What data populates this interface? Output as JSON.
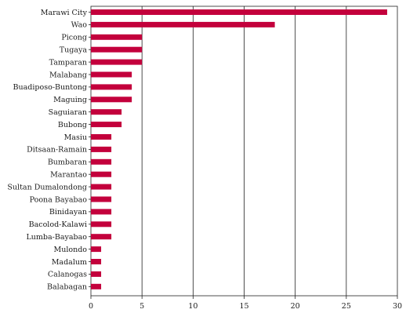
{
  "chart_data": {
    "type": "bar",
    "orientation": "horizontal",
    "categories": [
      "Marawi City",
      "Wao",
      "Picong",
      "Tugaya",
      "Tamparan",
      "Malabang",
      "Buadiposo-Buntong",
      "Maguing",
      "Saguiaran",
      "Bubong",
      "Masiu",
      "Ditsaan-Ramain",
      "Bumbaran",
      "Marantao",
      "Sultan Dumalondong",
      "Poona Bayabao",
      "Binidayan",
      "Bacolod-Kalawi",
      "Lumba-Bayabao",
      "Mulondo",
      "Madalum",
      "Calanogas",
      "Balabagan"
    ],
    "values": [
      29,
      18,
      5,
      5,
      5,
      4,
      4,
      4,
      3,
      3,
      2,
      2,
      2,
      2,
      2,
      2,
      2,
      2,
      2,
      1,
      1,
      1,
      1
    ],
    "xlim": [
      0,
      30
    ],
    "xticks": [
      "0",
      "5",
      "10",
      "15",
      "20",
      "25",
      "30"
    ],
    "grid": "vertical",
    "bar_color": "#c3003c"
  }
}
